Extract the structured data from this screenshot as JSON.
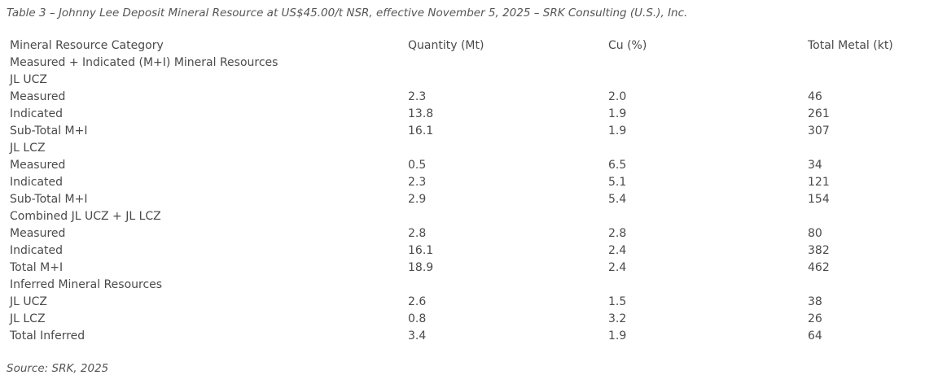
{
  "caption": "Table 3 – Johnny Lee Deposit Mineral Resource at US$45.00/t NSR, effective November 5, 2025 – SRK Consulting (U.S.), Inc.",
  "headers": [
    "Mineral Resource Category",
    "Quantity (Mt)",
    "Cu (%)",
    "Total Metal (kt)"
  ],
  "rows": [
    {
      "cells": [
        "Measured + Indicated (M+I) Mineral Resources",
        "",
        "",
        ""
      ],
      "bold": true
    },
    {
      "cells": [
        "JL UCZ",
        "",
        "",
        ""
      ],
      "bold": true
    },
    {
      "cells": [
        "Measured",
        "2.3",
        "2.0",
        "46"
      ],
      "bold": false
    },
    {
      "cells": [
        "Indicated",
        "13.8",
        "1.9",
        "261"
      ],
      "bold": false
    },
    {
      "cells": [
        "Sub-Total M+I",
        "16.1",
        "1.9",
        "307"
      ],
      "bold": true
    },
    {
      "cells": [
        "JL LCZ",
        "",
        "",
        ""
      ],
      "bold": true
    },
    {
      "cells": [
        "Measured",
        "0.5",
        "6.5",
        "34"
      ],
      "bold": false
    },
    {
      "cells": [
        "Indicated",
        "2.3",
        "5.1",
        "121"
      ],
      "bold": false
    },
    {
      "cells": [
        "Sub-Total M+I",
        "2.9",
        "5.4",
        "154"
      ],
      "bold": true
    },
    {
      "cells": [
        "Combined JL UCZ + JL LCZ",
        "",
        "",
        ""
      ],
      "bold": true
    },
    {
      "cells": [
        "Measured",
        "2.8",
        "2.8",
        "80"
      ],
      "bold": false
    },
    {
      "cells": [
        "Indicated",
        "16.1",
        "2.4",
        "382"
      ],
      "bold": false
    },
    {
      "cells": [
        "Total M+I",
        "18.9",
        "2.4",
        "462"
      ],
      "bold": true
    },
    {
      "cells": [
        "Inferred Mineral Resources",
        "",
        "",
        ""
      ],
      "bold": true
    },
    {
      "cells": [
        "JL UCZ",
        "2.6",
        "1.5",
        "38"
      ],
      "bold": false
    },
    {
      "cells": [
        "JL LCZ",
        "0.8",
        "3.2",
        "26"
      ],
      "bold": false
    },
    {
      "cells": [
        "Total Inferred",
        "3.4",
        "1.9",
        "64"
      ],
      "bold": true
    }
  ],
  "source": "Source: SRK, 2025"
}
